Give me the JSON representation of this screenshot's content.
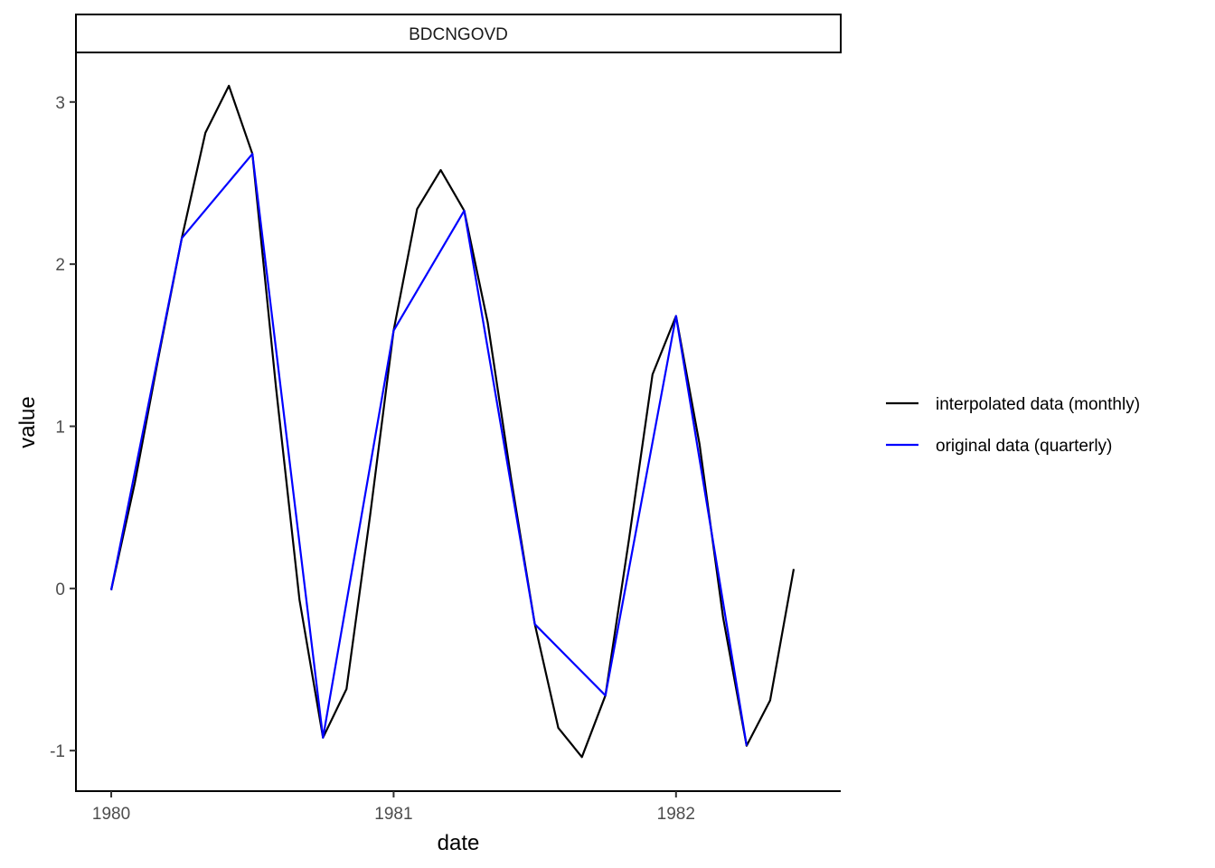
{
  "chart_data": {
    "type": "line",
    "facet_title": "BDCNGOVD",
    "xlabel": "date",
    "ylabel": "value",
    "xlim": [
      1979.875,
      1982.5833
    ],
    "ylim": [
      -1.25,
      3.3
    ],
    "x_ticks": [
      1980,
      1981,
      1982
    ],
    "x_tick_labels": [
      "1980",
      "1981",
      "1982"
    ],
    "y_ticks": [
      -1,
      0,
      1,
      2,
      3
    ],
    "y_tick_labels": [
      "-1",
      "0",
      "1",
      "2",
      "3"
    ],
    "grid": false,
    "legend_position": "right",
    "series": [
      {
        "name": "interpolated data (monthly)",
        "color": "#000000",
        "x": [
          1980.0,
          1980.0833,
          1980.1667,
          1980.25,
          1980.3333,
          1980.4167,
          1980.5,
          1980.5833,
          1980.6667,
          1980.75,
          1980.8333,
          1980.9167,
          1981.0,
          1981.0833,
          1981.1667,
          1981.25,
          1981.3333,
          1981.4167,
          1981.5,
          1981.5833,
          1981.6667,
          1981.75,
          1981.8333,
          1981.9167,
          1982.0,
          1982.0833,
          1982.1667,
          1982.25,
          1982.3333,
          1982.4167
        ],
        "y": [
          -0.01,
          0.65,
          1.42,
          2.16,
          2.81,
          3.1,
          2.68,
          1.24,
          -0.07,
          -0.92,
          -0.62,
          0.45,
          1.59,
          2.34,
          2.58,
          2.33,
          1.64,
          0.67,
          -0.22,
          -0.86,
          -1.04,
          -0.66,
          0.3,
          1.32,
          1.68,
          0.89,
          -0.18,
          -0.97,
          -0.69,
          0.12
        ]
      },
      {
        "name": "original data (quarterly)",
        "color": "#0000ff",
        "x": [
          1980.0,
          1980.25,
          1980.5,
          1980.75,
          1981.0,
          1981.25,
          1981.5,
          1981.75,
          1982.0,
          1982.25
        ],
        "y": [
          -0.01,
          2.16,
          2.68,
          -0.92,
          1.59,
          2.33,
          -0.22,
          -0.66,
          1.68,
          -0.97
        ]
      }
    ]
  }
}
